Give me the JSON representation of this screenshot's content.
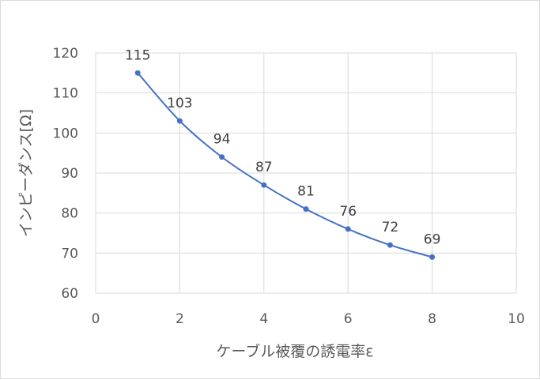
{
  "chart_data": {
    "type": "scatter",
    "title": "",
    "xlabel": "ケーブル被覆の誘電率ε",
    "ylabel": "インピーダンス[Ω]",
    "x": [
      1,
      2,
      3,
      4,
      5,
      6,
      7,
      8
    ],
    "series": [
      {
        "values": [
          115,
          103,
          94,
          87,
          81,
          76,
          72,
          69
        ],
        "color": "#4472c4",
        "line": "smooth",
        "markers": true,
        "data_labels": [
          "115",
          "103",
          "94",
          "87",
          "81",
          "76",
          "72",
          "69"
        ]
      }
    ],
    "xlim": [
      0,
      10
    ],
    "ylim": [
      60,
      120
    ],
    "x_ticks": [
      0,
      2,
      4,
      6,
      8,
      10
    ],
    "y_ticks": [
      60,
      70,
      80,
      90,
      100,
      110,
      120
    ],
    "x_tick_labels": [
      "0",
      "2",
      "4",
      "6",
      "8",
      "10"
    ],
    "y_tick_labels": [
      "60",
      "70",
      "80",
      "90",
      "100",
      "110",
      "120"
    ],
    "grid": true,
    "legend": "none"
  },
  "colors": {
    "series": "#4472c4",
    "grid": "#d9d9d9",
    "text": "#595959"
  }
}
